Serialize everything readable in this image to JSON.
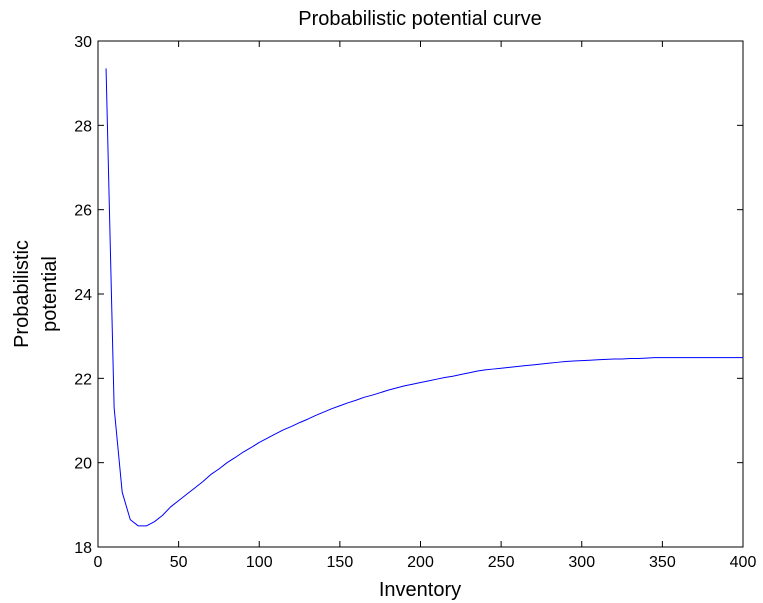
{
  "chart_data": {
    "type": "line",
    "title": "Probabilistic potential curve",
    "xlabel": "Inventory",
    "ylabel": [
      "Probabilistic",
      "potential"
    ],
    "xlim": [
      0,
      400
    ],
    "ylim": [
      18,
      30
    ],
    "xticks": [
      0,
      50,
      100,
      150,
      200,
      250,
      300,
      350,
      400
    ],
    "yticks": [
      18,
      20,
      22,
      24,
      26,
      28,
      30
    ],
    "grid": false,
    "series": [
      {
        "color": "#0000ff",
        "x": [
          5,
          10,
          15,
          20,
          25,
          30,
          35,
          40,
          45,
          50,
          55,
          60,
          65,
          70,
          75,
          80,
          85,
          90,
          95,
          100,
          105,
          110,
          115,
          120,
          125,
          130,
          135,
          140,
          145,
          150,
          155,
          160,
          165,
          170,
          175,
          180,
          185,
          190,
          195,
          200,
          205,
          210,
          215,
          220,
          225,
          230,
          235,
          240,
          245,
          250,
          255,
          260,
          265,
          270,
          275,
          280,
          285,
          290,
          295,
          300,
          305,
          310,
          315,
          320,
          325,
          330,
          335,
          340,
          345,
          350,
          355,
          360,
          365,
          370,
          375,
          380,
          385,
          390,
          395,
          400
        ],
        "y": [
          29.35,
          21.3,
          19.3,
          18.65,
          18.5,
          18.5,
          18.6,
          18.75,
          18.95,
          19.1,
          19.25,
          19.4,
          19.55,
          19.72,
          19.85,
          20.0,
          20.12,
          20.25,
          20.36,
          20.48,
          20.58,
          20.68,
          20.78,
          20.86,
          20.95,
          21.03,
          21.12,
          21.2,
          21.28,
          21.35,
          21.42,
          21.48,
          21.55,
          21.6,
          21.66,
          21.72,
          21.77,
          21.82,
          21.86,
          21.9,
          21.94,
          21.98,
          22.02,
          22.05,
          22.09,
          22.13,
          22.17,
          22.2,
          22.22,
          22.24,
          22.26,
          22.28,
          22.3,
          22.32,
          22.34,
          22.36,
          22.38,
          22.4,
          22.41,
          22.42,
          22.43,
          22.44,
          22.45,
          22.46,
          22.46,
          22.47,
          22.47,
          22.48,
          22.49,
          22.49,
          22.49,
          22.49,
          22.49,
          22.49,
          22.49,
          22.49,
          22.49,
          22.49,
          22.49,
          22.49
        ]
      }
    ]
  }
}
